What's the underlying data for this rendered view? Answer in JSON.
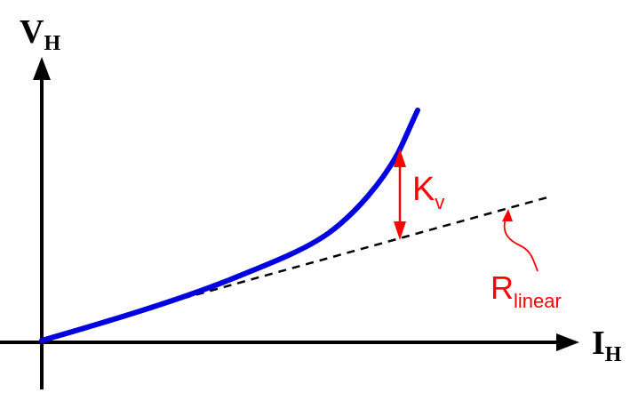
{
  "axes": {
    "y_label_main": "V",
    "y_label_sub": "H",
    "x_label_main": "I",
    "x_label_sub": "H"
  },
  "annotations": {
    "kv_main": "K",
    "kv_sub": "v",
    "rlinear_main": "R",
    "rlinear_sub": "linear"
  },
  "colors": {
    "axis": "#000000",
    "curve": "#0000e0",
    "linear_fit": "#000000",
    "annotation": "#ff0000"
  }
}
